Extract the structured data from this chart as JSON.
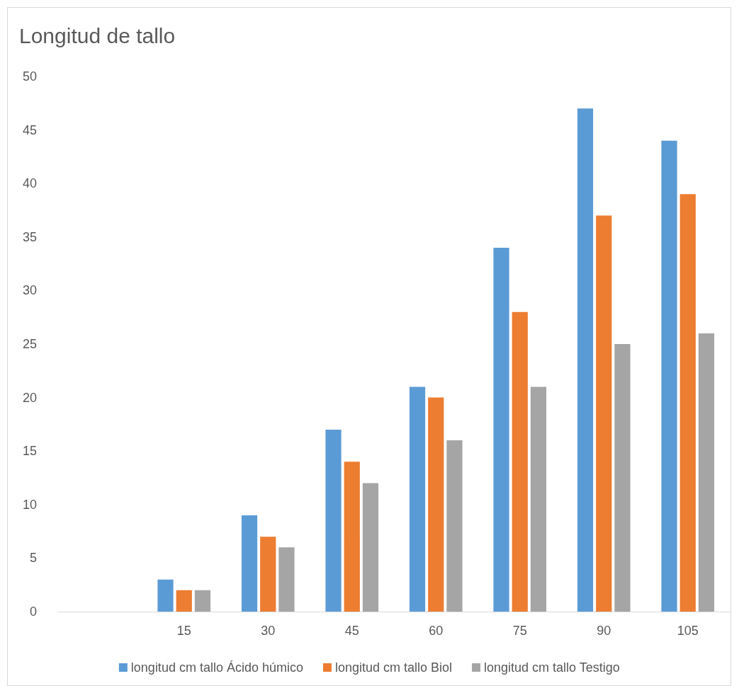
{
  "chart_data": {
    "type": "bar",
    "title": "Longitud de tallo",
    "categories": [
      null,
      "15",
      "30",
      "45",
      "60",
      "75",
      "90",
      "105"
    ],
    "series": [
      {
        "name": "longitud cm tallo Ácido húmico",
        "color": "#5b9bd5",
        "values": [
          null,
          3,
          9,
          17,
          21,
          34,
          47,
          44
        ]
      },
      {
        "name": "longitud cm tallo Biol",
        "color": "#ed7d31",
        "values": [
          null,
          2,
          7,
          14,
          20,
          28,
          37,
          39
        ]
      },
      {
        "name": "longitud cm tallo Testigo",
        "color": "#a5a5a5",
        "values": [
          null,
          2,
          6,
          12,
          16,
          21,
          25,
          26
        ]
      }
    ],
    "ylim": [
      0,
      50
    ],
    "yticks": [
      0,
      5,
      10,
      15,
      20,
      25,
      30,
      35,
      40,
      45,
      50
    ],
    "grid": false,
    "legend": "bottom"
  }
}
